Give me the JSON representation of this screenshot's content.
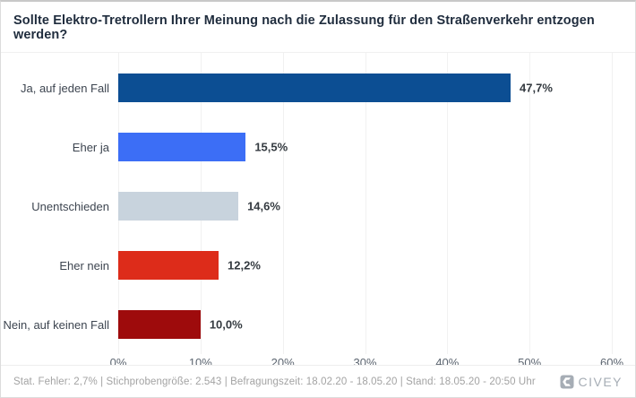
{
  "title": "Sollte Elektro-Tretrollern Ihrer Meinung nach die Zulassung für den Straßenverkehr entzogen werden?",
  "chart_data": {
    "type": "bar",
    "orientation": "horizontal",
    "categories": [
      "Ja, auf jeden Fall",
      "Eher ja",
      "Unentschieden",
      "Eher nein",
      "Nein, auf keinen Fall"
    ],
    "values": [
      47.7,
      15.5,
      14.6,
      12.2,
      10.0
    ],
    "value_labels": [
      "47,7%",
      "15,5%",
      "14,6%",
      "12,2%",
      "10,0%"
    ],
    "bar_colors": [
      "#0c4e93",
      "#3c6ef6",
      "#c8d3dd",
      "#dd2c1a",
      "#9e0b0c"
    ],
    "x_ticks": [
      "0%",
      "10%",
      "20%",
      "30%",
      "40%",
      "50%",
      "60%"
    ],
    "xlim": [
      0,
      60
    ],
    "xlabel": "",
    "ylabel": "",
    "grid": true,
    "legend": false,
    "title": "Sollte Elektro-Tretrollern Ihrer Meinung nach die Zulassung für den Straßenverkehr entzogen werden?"
  },
  "footer": {
    "stats": "Stat. Fehler: 2,7% | Stichprobengröße: 2.543 | Befragungszeit: 18.02.20 - 18.05.20 | Stand: 18.05.20 - 20:50 Uhr",
    "brand": "CIVEY"
  },
  "colors": {
    "title_text": "#1f2c3d",
    "category_text": "#3d4550",
    "value_text": "#343a40",
    "tick_text": "#5d6671",
    "footer_text": "#a3a3a3",
    "brand": "#a6adb5",
    "gridline": "#f1f1f1",
    "border": "#dcdcdc"
  }
}
